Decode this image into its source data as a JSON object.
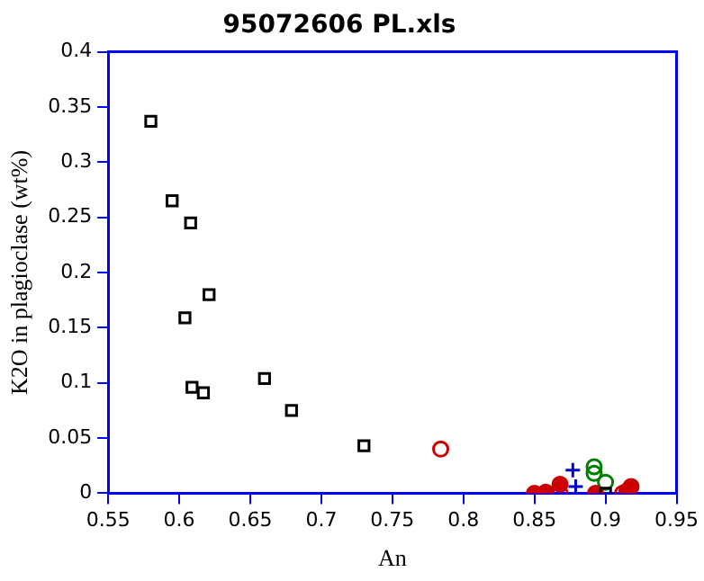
{
  "chart_data": {
    "type": "scatter",
    "title": "95072606 PL.xls",
    "xlabel": "An",
    "ylabel": "K2O in plagioclase (wt%)",
    "xlim": [
      0.55,
      0.95
    ],
    "xticks": [
      0.55,
      0.6,
      0.65,
      0.7,
      0.75,
      0.8,
      0.85,
      0.9,
      0.95
    ],
    "ylim": [
      0,
      0.4
    ],
    "yticks": [
      0,
      0.05,
      0.1,
      0.15,
      0.2,
      0.25,
      0.3,
      0.35,
      0.4
    ],
    "grid": false,
    "legend": false,
    "series": [
      {
        "color": "#000000",
        "marker": "square",
        "x": [
          0.58,
          0.595,
          0.608,
          0.621,
          0.604,
          0.609,
          0.617,
          0.66,
          0.679,
          0.73,
          0.9
        ],
        "values": [
          0.337,
          0.265,
          0.245,
          0.18,
          0.159,
          0.096,
          0.091,
          0.104,
          0.075,
          0.043,
          0
        ]
      },
      {
        "color": "#cc0000",
        "marker": "circle",
        "x": [
          0.784,
          0.868,
          0.912
        ],
        "values": [
          0.04,
          0,
          0
        ]
      },
      {
        "color": "#cc0000",
        "marker": "circle",
        "x": [
          0.85,
          0.858,
          0.868,
          0.893,
          0.918,
          0.915
        ],
        "values": [
          0,
          0.001,
          0.008,
          0,
          0.006,
          0.002
        ]
      },
      {
        "color": "#0000cc",
        "marker": "cross",
        "x": [
          0.877,
          0.879
        ],
        "values": [
          0.021,
          0.006
        ]
      },
      {
        "color": "#008000",
        "marker": "circle",
        "x": [
          0.892,
          0.892,
          0.9
        ],
        "values": [
          0.024,
          0.018,
          0.01
        ]
      }
    ]
  }
}
